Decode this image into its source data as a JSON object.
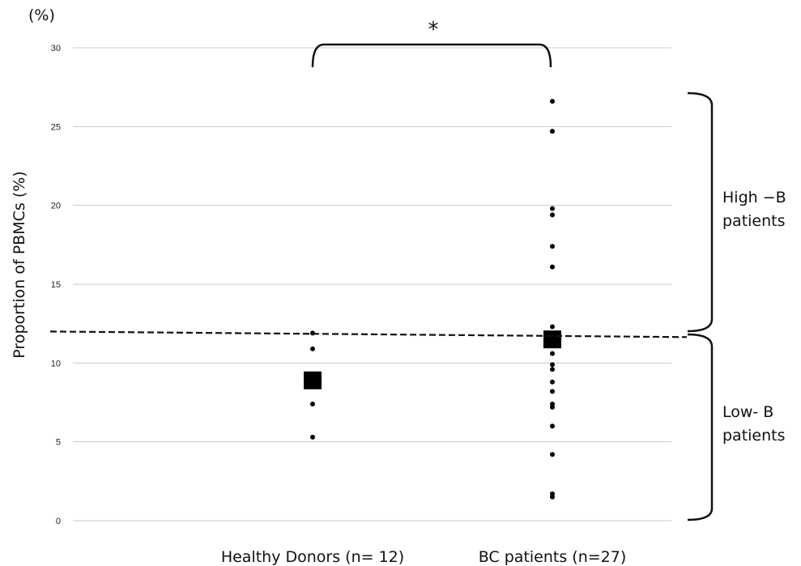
{
  "chart_data": {
    "type": "scatter",
    "ylabel": "Proportion of PBMCs (%)",
    "y_unit_label": "(%)",
    "ylim": [
      0,
      30
    ],
    "y_ticks": [
      "0",
      "5",
      "10",
      "15",
      "20",
      "25",
      "30"
    ],
    "categories": [
      "Healthy Donors (n= 12)",
      "BC patients (n=27)"
    ],
    "grid": "horizontal",
    "series": [
      {
        "category": "Healthy Donors (n= 12)",
        "values": [
          11.9,
          10.9,
          7.4,
          5.3
        ],
        "mean": 8.9
      },
      {
        "category": "BC patients (n=27)",
        "values": [
          26.6,
          24.7,
          19.8,
          19.4,
          17.4,
          16.1,
          12.3,
          11.8,
          10.6,
          9.9,
          9.6,
          8.8,
          8.2,
          7.4,
          7.2,
          6.0,
          4.2,
          1.7,
          1.5
        ],
        "mean": 11.5
      }
    ],
    "threshold": 12.0,
    "significance_marker": "*",
    "annotations": [
      "High −B\npatients",
      "Low- B\npatients"
    ]
  }
}
